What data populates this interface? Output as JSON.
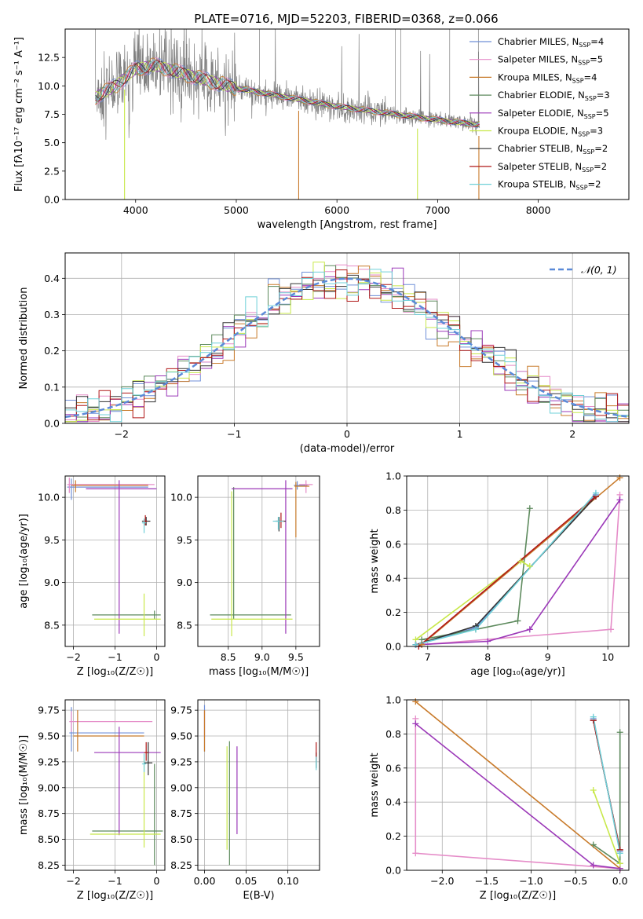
{
  "figure_title": "PLATE=0716, MJD=52203, FIBERID=0368, z=0.066",
  "colors": {
    "Chabrier MILES": "#6f8fd8",
    "Salpeter MILES": "#e58cc8",
    "Kroupa MILES": "#c87a2a",
    "Chabrier ELODIE": "#5d8a5d",
    "Salpeter ELODIE": "#9b38b8",
    "Kroupa ELODIE": "#c8e84a",
    "Chabrier STELIB": "#333333",
    "Salpeter STELIB": "#b01818",
    "Kroupa STELIB": "#6fd0d8",
    "data": "#808080",
    "normal": "#5b8ad8"
  },
  "chart_data": [
    {
      "id": "spectrum",
      "type": "line",
      "title": "PLATE=0716, MJD=52203, FIBERID=0368, z=0.066",
      "xlabel": "wavelength [Angstrom, rest frame]",
      "ylabel": "Flux [fλ10⁻¹⁷ erg cm⁻² s⁻¹ A⁻¹]",
      "xlim": [
        3300,
        8900
      ],
      "ylim": [
        0,
        15
      ],
      "xticks": [
        "4000",
        "5000",
        "6000",
        "7000",
        "8000"
      ],
      "yticks": [
        "0.0",
        "2.5",
        "5.0",
        "7.5",
        "10.0",
        "12.5"
      ],
      "grid": false,
      "legend_position": "top-right",
      "continuum": [
        [
          3600,
          9.0
        ],
        [
          3800,
          10.0
        ],
        [
          4000,
          11.5
        ],
        [
          4200,
          11.8
        ],
        [
          4500,
          11.0
        ],
        [
          5000,
          9.8
        ],
        [
          5500,
          9.0
        ],
        [
          6000,
          8.2
        ],
        [
          6500,
          7.6
        ],
        [
          7000,
          7.0
        ],
        [
          7400,
          6.6
        ]
      ],
      "legend": [
        {
          "label": "Chabrier MILES, N",
          "sub": "SSP",
          "suffix": "=4"
        },
        {
          "label": "Salpeter MILES, N",
          "sub": "SSP",
          "suffix": "=5"
        },
        {
          "label": "Kroupa MILES, N",
          "sub": "SSP",
          "suffix": "=4"
        },
        {
          "label": "Chabrier ELODIE, N",
          "sub": "SSP",
          "suffix": "=3"
        },
        {
          "label": "Salpeter ELODIE, N",
          "sub": "SSP",
          "suffix": "=5"
        },
        {
          "label": "Kroupa ELODIE, N",
          "sub": "SSP",
          "suffix": "=3"
        },
        {
          "label": "Chabrier STELIB, N",
          "sub": "SSP",
          "suffix": "=2"
        },
        {
          "label": "Salpeter STELIB, N",
          "sub": "SSP",
          "suffix": "=2"
        },
        {
          "label": "Kroupa STELIB, N",
          "sub": "SSP",
          "suffix": "=2"
        }
      ]
    },
    {
      "id": "residuals",
      "type": "line",
      "xlabel": "(data-model)/error",
      "ylabel": "Normed distribution",
      "xlim": [
        -2.5,
        2.5
      ],
      "ylim": [
        0,
        0.47
      ],
      "xticks": [
        "−2",
        "−1",
        "0",
        "1",
        "2"
      ],
      "yticks": [
        "0.0",
        "0.1",
        "0.2",
        "0.3",
        "0.4"
      ],
      "grid": true,
      "legend_position": "top-right",
      "legend": "𝒩(0, 1)"
    },
    {
      "id": "age_vs_Z",
      "type": "scatter",
      "xlabel": "Z [log₁₀(Z/Z☉)]",
      "ylabel": "age  [log₁₀(age/yr)]",
      "xlim": [
        -2.2,
        0.2
      ],
      "ylim": [
        8.25,
        10.25
      ],
      "xticks": [
        "−2",
        "−1",
        "0"
      ],
      "yticks": [
        "8.5",
        "9.0",
        "9.5",
        "10.0"
      ],
      "grid": true,
      "points": [
        {
          "model": "Chabrier MILES",
          "x": -2.05,
          "xerr": [
            0.1,
            1.85
          ],
          "y": 10.12,
          "yerr": [
            0.15,
            0.1
          ]
        },
        {
          "model": "Salpeter MILES",
          "x": -2.1,
          "xerr": [
            0.05,
            2.05
          ],
          "y": 10.15,
          "yerr": [
            0.1,
            0.08
          ]
        },
        {
          "model": "Kroupa MILES",
          "x": -1.95,
          "xerr": [
            0.1,
            1.75
          ],
          "y": 10.14,
          "yerr": [
            0.08,
            0.06
          ]
        },
        {
          "model": "Chabrier ELODIE",
          "x": -0.05,
          "xerr": [
            1.5,
            0.15
          ],
          "y": 8.62,
          "yerr": [
            0.05,
            0.05
          ]
        },
        {
          "model": "Salpeter ELODIE",
          "x": -0.9,
          "xerr": [
            0.8,
            0.9
          ],
          "y": 10.1,
          "yerr": [
            1.7,
            0.1
          ]
        },
        {
          "model": "Kroupa ELODIE",
          "x": -0.3,
          "xerr": [
            1.2,
            0.4
          ],
          "y": 8.57,
          "yerr": [
            0.2,
            0.3
          ]
        },
        {
          "model": "Chabrier STELIB",
          "x": -0.25,
          "xerr": [
            0.1,
            0.1
          ],
          "y": 9.72,
          "yerr": [
            0.05,
            0.05
          ]
        },
        {
          "model": "Salpeter STELIB",
          "x": -0.27,
          "xerr": [
            0.05,
            0.05
          ],
          "y": 9.72,
          "yerr": [
            0.05,
            0.07
          ]
        },
        {
          "model": "Kroupa STELIB",
          "x": -0.3,
          "xerr": [
            0.05,
            0.05
          ],
          "y": 9.7,
          "yerr": [
            0.12,
            0.05
          ]
        }
      ]
    },
    {
      "id": "age_vs_mass",
      "type": "scatter",
      "xlabel": "mass [log₁₀(M/M☉)]",
      "ylabel": "",
      "xlim": [
        8.05,
        9.85
      ],
      "ylim": [
        8.25,
        10.25
      ],
      "xticks": [
        "8.5",
        "9.0",
        "9.5"
      ],
      "yticks": [
        "8.5",
        "9.0",
        "9.5",
        "10.0"
      ],
      "grid": true,
      "points": [
        {
          "model": "Chabrier MILES",
          "x": 9.52,
          "xerr": [
            0.05,
            0.15
          ],
          "y": 10.14,
          "yerr": [
            0.05,
            0.05
          ]
        },
        {
          "model": "Salpeter MILES",
          "x": 9.65,
          "xerr": [
            0.1,
            0.1
          ],
          "y": 10.15,
          "yerr": [
            0.1,
            0.05
          ]
        },
        {
          "model": "Kroupa MILES",
          "x": 9.5,
          "xerr": [
            0.02,
            0.2
          ],
          "y": 10.13,
          "yerr": [
            0.6,
            0.05
          ]
        },
        {
          "model": "Chabrier ELODIE",
          "x": 8.58,
          "xerr": [
            0.35,
            0.85
          ],
          "y": 8.62,
          "yerr": [
            0.05,
            1.5
          ]
        },
        {
          "model": "Salpeter ELODIE",
          "x": 9.35,
          "xerr": [
            0.8,
            0.1
          ],
          "y": 10.1,
          "yerr": [
            1.7,
            0.1
          ]
        },
        {
          "model": "Kroupa ELODIE",
          "x": 8.55,
          "xerr": [
            0.3,
            0.9
          ],
          "y": 8.57,
          "yerr": [
            0.2,
            1.5
          ]
        },
        {
          "model": "Chabrier STELIB",
          "x": 9.25,
          "xerr": [
            0.05,
            0.1
          ],
          "y": 9.72,
          "yerr": [
            0.12,
            0.05
          ]
        },
        {
          "model": "Salpeter STELIB",
          "x": 9.28,
          "xerr": [
            0.05,
            0.05
          ],
          "y": 9.72,
          "yerr": [
            0.08,
            0.1
          ]
        },
        {
          "model": "Kroupa STELIB",
          "x": 9.24,
          "xerr": [
            0.08,
            0.08
          ],
          "y": 9.72,
          "yerr": [
            0.1,
            0.05
          ]
        }
      ]
    },
    {
      "id": "weight_vs_age",
      "type": "line",
      "xlabel": "age  [log₁₀(age/yr)]",
      "ylabel": "mass weight",
      "xlim": [
        6.65,
        10.35
      ],
      "ylim": [
        0,
        1.0
      ],
      "xticks": [
        "7",
        "8",
        "9",
        "10"
      ],
      "yticks": [
        "0.0",
        "0.2",
        "0.4",
        "0.6",
        "0.8",
        "1.0"
      ],
      "grid": true,
      "series": [
        {
          "model": "Chabrier MILES",
          "x": [
            6.8,
            7.8,
            9.8
          ],
          "y": [
            0.01,
            0.11,
            0.89
          ]
        },
        {
          "model": "Salpeter MILES",
          "x": [
            6.9,
            10.05,
            10.2
          ],
          "y": [
            0.01,
            0.1,
            0.89
          ]
        },
        {
          "model": "Kroupa MILES",
          "x": [
            6.9,
            10.2
          ],
          "y": [
            0.01,
            0.99
          ]
        },
        {
          "model": "Chabrier ELODIE",
          "x": [
            6.9,
            7.8,
            8.5,
            8.7
          ],
          "y": [
            0.04,
            0.1,
            0.15,
            0.81
          ]
        },
        {
          "model": "Salpeter ELODIE",
          "x": [
            6.8,
            8.0,
            8.7,
            10.2
          ],
          "y": [
            0.01,
            0.03,
            0.1,
            0.86
          ]
        },
        {
          "model": "Kroupa ELODIE",
          "x": [
            6.8,
            8.55,
            8.7
          ],
          "y": [
            0.04,
            0.5,
            0.47
          ]
        },
        {
          "model": "Chabrier STELIB",
          "x": [
            6.8,
            7.8,
            9.8
          ],
          "y": [
            0.01,
            0.12,
            0.88
          ]
        },
        {
          "model": "Salpeter STELIB",
          "x": [
            6.85,
            9.8
          ],
          "y": [
            0.0,
            0.88
          ]
        },
        {
          "model": "Kroupa STELIB",
          "x": [
            6.8,
            7.8,
            9.8
          ],
          "y": [
            0.01,
            0.1,
            0.9
          ]
        }
      ]
    },
    {
      "id": "mass_vs_Z",
      "type": "scatter",
      "xlabel": "Z [log₁₀(Z/Z☉)]",
      "ylabel": "mass [log₁₀(M/M☉)]",
      "xlim": [
        -2.2,
        0.2
      ],
      "ylim": [
        8.2,
        9.85
      ],
      "xticks": [
        "−2",
        "−1",
        "0"
      ],
      "yticks": [
        "8.25",
        "8.50",
        "8.75",
        "9.00",
        "9.25",
        "9.50",
        "9.75"
      ],
      "grid": true,
      "points": [
        {
          "model": "Chabrier MILES",
          "x": -2.05,
          "xerr": [
            0.05,
            1.75
          ],
          "y": 9.53,
          "yerr": [
            0.18,
            0.25
          ]
        },
        {
          "model": "Salpeter MILES",
          "x": -2.05,
          "xerr": [
            0.05,
            1.95
          ],
          "y": 9.64,
          "yerr": [
            0.1,
            0.1
          ]
        },
        {
          "model": "Kroupa MILES",
          "x": -1.9,
          "xerr": [
            0.1,
            1.6
          ],
          "y": 9.5,
          "yerr": [
            0.15,
            0.25
          ]
        },
        {
          "model": "Chabrier ELODIE",
          "x": -0.05,
          "xerr": [
            1.5,
            0.2
          ],
          "y": 8.58,
          "yerr": [
            0.33,
            0.65
          ]
        },
        {
          "model": "Salpeter ELODIE",
          "x": -0.9,
          "xerr": [
            0.6,
            1.0
          ],
          "y": 9.34,
          "yerr": [
            0.8,
            0.25
          ]
        },
        {
          "model": "Kroupa ELODIE",
          "x": -0.3,
          "xerr": [
            1.3,
            0.4
          ],
          "y": 8.55,
          "yerr": [
            0.13,
            0.72
          ]
        },
        {
          "model": "Chabrier STELIB",
          "x": -0.2,
          "xerr": [
            0.1,
            0.1
          ],
          "y": 9.24,
          "yerr": [
            0.12,
            0.2
          ]
        },
        {
          "model": "Salpeter STELIB",
          "x": -0.25,
          "xerr": [
            0.05,
            0.05
          ],
          "y": 9.34,
          "yerr": [
            0.08,
            0.1
          ]
        },
        {
          "model": "Kroupa STELIB",
          "x": -0.3,
          "xerr": [
            0.05,
            0.05
          ],
          "y": 9.23,
          "yerr": [
            0.08,
            0.1
          ]
        }
      ]
    },
    {
      "id": "mass_vs_ebv",
      "type": "scatter",
      "xlabel": "E(B-V)",
      "ylabel": "",
      "xlim": [
        -0.008,
        0.138
      ],
      "ylim": [
        8.2,
        9.85
      ],
      "xticks": [
        "0.00",
        "0.05",
        "0.10"
      ],
      "yticks": [
        "8.25",
        "8.50",
        "8.75",
        "9.00",
        "9.25",
        "9.50",
        "9.75"
      ],
      "grid": true,
      "points": [
        {
          "model": "Chabrier MILES",
          "x": 0.0,
          "y": 9.55,
          "yerr": [
            0.2,
            0.25
          ]
        },
        {
          "model": "Salpeter MILES",
          "x": 0.0,
          "y": 9.64,
          "yerr": [
            0.15,
            0.1
          ]
        },
        {
          "model": "Kroupa MILES",
          "x": 0.0,
          "y": 9.5,
          "yerr": [
            0.15,
            0.25
          ]
        },
        {
          "model": "Chabrier ELODIE",
          "x": 0.03,
          "y": 8.6,
          "yerr": [
            0.35,
            0.85
          ]
        },
        {
          "model": "Salpeter ELODIE",
          "x": 0.039,
          "y": 9.0,
          "yerr": [
            0.45,
            0.4
          ]
        },
        {
          "model": "Kroupa ELODIE",
          "x": 0.027,
          "y": 8.9,
          "yerr": [
            0.5,
            0.5
          ]
        },
        {
          "model": "Chabrier STELIB",
          "x": 0.134,
          "y": 9.24,
          "yerr": [
            0.05,
            0.1
          ]
        },
        {
          "model": "Salpeter STELIB",
          "x": 0.134,
          "y": 9.34,
          "yerr": [
            0.08,
            0.1
          ]
        },
        {
          "model": "Kroupa STELIB",
          "x": 0.134,
          "y": 9.22,
          "yerr": [
            0.05,
            0.08
          ]
        }
      ]
    },
    {
      "id": "weight_vs_Z",
      "type": "line",
      "xlabel": "Z [log₁₀(Z/Z☉)]",
      "ylabel": "mass weight",
      "xlim": [
        -2.4,
        0.1
      ],
      "ylim": [
        0,
        1.0
      ],
      "xticks": [
        "−2.0",
        "−1.5",
        "−1.0",
        "−0.5",
        "0.0"
      ],
      "yticks": [
        "0.0",
        "0.2",
        "0.4",
        "0.6",
        "0.8",
        "1.0"
      ],
      "grid": true,
      "series": [
        {
          "model": "Chabrier MILES",
          "x": [
            -0.3,
            0.0
          ],
          "y": [
            0.89,
            0.11
          ]
        },
        {
          "model": "Salpeter MILES",
          "x": [
            -2.3,
            -2.3,
            0.0
          ],
          "y": [
            0.89,
            0.1,
            0.01
          ]
        },
        {
          "model": "Kroupa MILES",
          "x": [
            -2.3,
            0.0
          ],
          "y": [
            0.99,
            0.01
          ]
        },
        {
          "model": "Chabrier ELODIE",
          "x": [
            -0.3,
            0.0,
            0.0
          ],
          "y": [
            0.15,
            0.04,
            0.81
          ]
        },
        {
          "model": "Salpeter ELODIE",
          "x": [
            -2.3,
            -0.3,
            0.0
          ],
          "y": [
            0.86,
            0.03,
            0.01
          ]
        },
        {
          "model": "Kroupa ELODIE",
          "x": [
            -0.3,
            0.0
          ],
          "y": [
            0.47,
            0.04
          ]
        },
        {
          "model": "Chabrier STELIB",
          "x": [
            -0.3,
            0.0
          ],
          "y": [
            0.88,
            0.12
          ]
        },
        {
          "model": "Salpeter STELIB",
          "x": [
            -0.3,
            0.0
          ],
          "y": [
            0.88,
            0.12
          ]
        },
        {
          "model": "Kroupa STELIB",
          "x": [
            -0.3,
            0.0
          ],
          "y": [
            0.9,
            0.1
          ]
        }
      ]
    }
  ]
}
